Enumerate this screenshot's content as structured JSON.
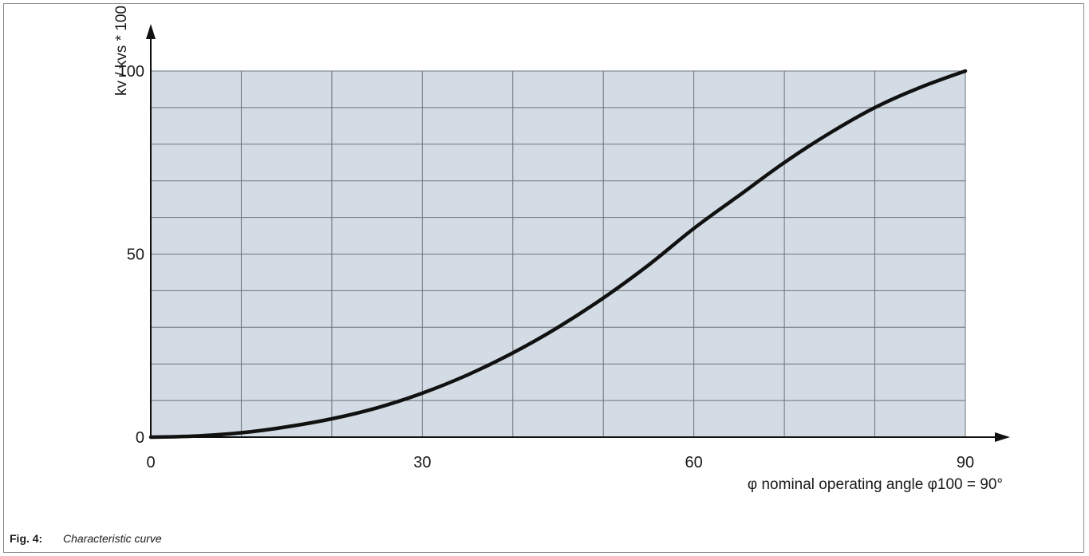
{
  "caption": {
    "number": "Fig. 4:",
    "text": "Characteristic curve"
  },
  "colors": {
    "plot_background": "#d3dce4",
    "grid": "#6d737a",
    "curve": "#111111",
    "axis": "#111111"
  },
  "chart_data": {
    "type": "line",
    "title": "",
    "xlabel": "φ nominal operating angle  φ100 = 90°",
    "ylabel": "kv / kvs * 100",
    "xlim": [
      0,
      90
    ],
    "ylim": [
      0,
      100
    ],
    "x_ticks": [
      0,
      30,
      60,
      90
    ],
    "x_tick_labels": [
      "0",
      "30",
      "60",
      "90"
    ],
    "y_ticks": [
      0,
      50,
      100
    ],
    "y_tick_labels": [
      "0",
      "50",
      "100"
    ],
    "x_grid_step": 10,
    "y_grid_step": 10,
    "grid": true,
    "legend": "none",
    "series": [
      {
        "x": [
          0,
          5,
          10,
          15,
          20,
          25,
          30,
          35,
          40,
          45,
          50,
          55,
          60,
          65,
          70,
          75,
          80,
          85,
          90
        ],
        "y": [
          0,
          0.3,
          1.2,
          2.8,
          5,
          8,
          12,
          17,
          23,
          30,
          38,
          47,
          57,
          66,
          75,
          83,
          90,
          95.5,
          100
        ]
      }
    ]
  }
}
